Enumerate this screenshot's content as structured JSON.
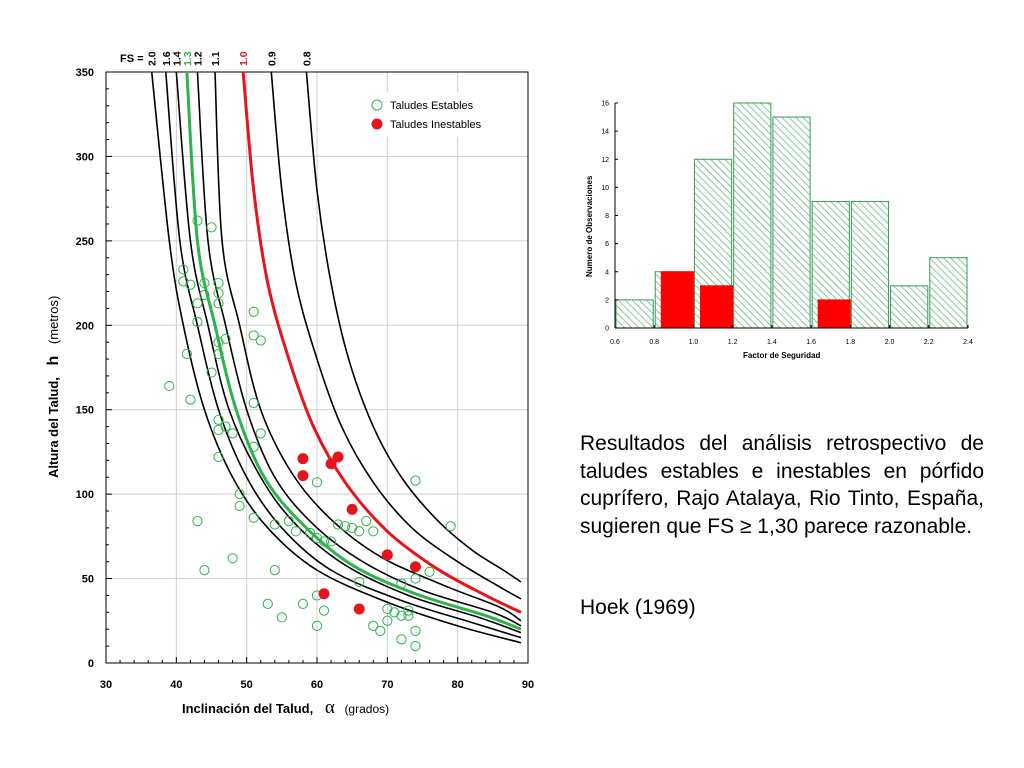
{
  "main_chart": {
    "fs_header": "FS  =",
    "curve_labels": [
      "2.0",
      "1.6",
      "1.4",
      "1.3",
      "1.2",
      "1.1",
      "1.0",
      "0.9",
      "0.8"
    ],
    "xlabel_main": "Inclinación del Talud,",
    "xlabel_symbol": "α",
    "xlabel_units": "(grados)",
    "ylabel_main": "Altura  del  Talud,",
    "ylabel_symbol": "h",
    "ylabel_units": "(metros)",
    "legend": {
      "stable": "Taludes  Estables",
      "unstable": "Taludes Inestables"
    },
    "colors": {
      "stable": "#2db34a",
      "unstable": "#e8141c",
      "line": "#000000"
    }
  },
  "histogram": {
    "ylabel": "Numero  de  Observaciones",
    "xlabel": "Factor  de  Seguridad",
    "colors": {
      "stable_edge": "#3a9a55",
      "stable_hatch": "#6dbb82",
      "unstable": "#ff0000"
    }
  },
  "caption": "Resultados del análisis retrospectivo de taludes estables e inestables en pórfido cuprífero, Rajo Atalaya, Rio Tinto, España, sugieren que FS ≥ 1,30 parece razonable.",
  "citation": "Hoek (1969)",
  "chart_data": [
    {
      "type": "scatter",
      "xlabel": "Inclinación del Talud, α (grados)",
      "ylabel": "Altura  del  Talud,  h  (metros)",
      "xlim": [
        30,
        90
      ],
      "ylim": [
        0,
        350
      ],
      "xticks": [
        30,
        40,
        50,
        60,
        70,
        80,
        90
      ],
      "yticks": [
        0,
        50,
        100,
        150,
        200,
        250,
        300,
        350
      ],
      "grid": true,
      "legend_position": "top-right",
      "fs_curves": [
        {
          "label": "2.0",
          "color": "#000000",
          "points": [
            [
              36.5,
              350
            ],
            [
              39,
              250
            ],
            [
              41,
              200
            ],
            [
              44,
              150
            ],
            [
              48,
              110
            ],
            [
              53,
              80
            ],
            [
              60,
              55
            ],
            [
              70,
              36
            ],
            [
              80,
              22
            ],
            [
              89,
              12
            ]
          ]
        },
        {
          "label": "1.6",
          "color": "#000000",
          "points": [
            [
              38.5,
              350
            ],
            [
              40.5,
              250
            ],
            [
              43,
              200
            ],
            [
              46,
              150
            ],
            [
              50,
              110
            ],
            [
              55,
              80
            ],
            [
              62,
              55
            ],
            [
              72,
              37
            ],
            [
              82,
              24
            ],
            [
              89,
              15
            ]
          ]
        },
        {
          "label": "1.4",
          "color": "#000000",
          "points": [
            [
              40,
              350
            ],
            [
              42,
              250
            ],
            [
              44.5,
              200
            ],
            [
              47.5,
              150
            ],
            [
              52,
              110
            ],
            [
              57,
              82
            ],
            [
              64,
              58
            ],
            [
              73,
              40
            ],
            [
              83,
              27
            ],
            [
              89,
              18
            ]
          ]
        },
        {
          "label": "1.3",
          "color": "#2db34a",
          "points": [
            [
              41.5,
              350
            ],
            [
              43,
              250
            ],
            [
              45.5,
              200
            ],
            [
              48.5,
              150
            ],
            [
              52.5,
              110
            ],
            [
              58,
              82
            ],
            [
              65,
              58
            ],
            [
              74,
              41
            ],
            [
              84,
              28
            ],
            [
              89,
              20
            ]
          ]
        },
        {
          "label": "1.2",
          "color": "#000000",
          "points": [
            [
              43,
              350
            ],
            [
              44.5,
              250
            ],
            [
              47,
              200
            ],
            [
              50,
              150
            ],
            [
              54,
              110
            ],
            [
              59.5,
              82
            ],
            [
              66.5,
              60
            ],
            [
              75,
              43
            ],
            [
              85,
              30
            ],
            [
              89,
              22
            ]
          ]
        },
        {
          "label": "1.1",
          "color": "#000000",
          "points": [
            [
              45.5,
              350
            ],
            [
              46.5,
              250
            ],
            [
              49,
              200
            ],
            [
              52,
              150
            ],
            [
              56.5,
              112
            ],
            [
              62,
              85
            ],
            [
              69,
              63
            ],
            [
              78,
              46
            ],
            [
              86,
              33
            ],
            [
              89,
              25
            ]
          ]
        },
        {
          "label": "1.0",
          "color": "#e8141c",
          "points": [
            [
              49.5,
              350
            ],
            [
              51,
              280
            ],
            [
              53,
              225
            ],
            [
              56,
              180
            ],
            [
              59.5,
              140
            ],
            [
              64,
              107
            ],
            [
              70,
              78
            ],
            [
              77,
              56
            ],
            [
              84,
              40
            ],
            [
              89,
              30
            ]
          ]
        },
        {
          "label": "0.9",
          "color": "#000000",
          "points": [
            [
              53.5,
              350
            ],
            [
              55,
              280
            ],
            [
              57,
              225
            ],
            [
              60,
              180
            ],
            [
              63.5,
              140
            ],
            [
              68,
              107
            ],
            [
              73.5,
              80
            ],
            [
              80,
              60
            ],
            [
              86,
              45
            ],
            [
              89,
              38
            ]
          ]
        },
        {
          "label": "0.8",
          "color": "#000000",
          "points": [
            [
              58.5,
              350
            ],
            [
              60,
              280
            ],
            [
              62,
              225
            ],
            [
              64.5,
              180
            ],
            [
              68,
              140
            ],
            [
              72,
              110
            ],
            [
              77,
              85
            ],
            [
              82,
              67
            ],
            [
              86.5,
              55
            ],
            [
              89,
              48
            ]
          ]
        }
      ],
      "series": [
        {
          "name": "Taludes  Estables",
          "marker": "open-circle",
          "color": "#2db34a",
          "points": [
            [
              39,
              164
            ],
            [
              41,
              233
            ],
            [
              41,
              226
            ],
            [
              42,
              224
            ],
            [
              41.5,
              183
            ],
            [
              42,
              156
            ],
            [
              43,
              262
            ],
            [
              43,
              213
            ],
            [
              43,
              202
            ],
            [
              44,
              225
            ],
            [
              44,
              218
            ],
            [
              45,
              258
            ],
            [
              45,
              172
            ],
            [
              46,
              225
            ],
            [
              46,
              219
            ],
            [
              46,
              213
            ],
            [
              46,
              190
            ],
            [
              46,
              183
            ],
            [
              46,
              144
            ],
            [
              46,
              138
            ],
            [
              46,
              122
            ],
            [
              47,
              192
            ],
            [
              47,
              140
            ],
            [
              48,
              136
            ],
            [
              49,
              100
            ],
            [
              49,
              93
            ],
            [
              51,
              208
            ],
            [
              51,
              194
            ],
            [
              51,
              154
            ],
            [
              51,
              128
            ],
            [
              51,
              86
            ],
            [
              52,
              191
            ],
            [
              52,
              136
            ],
            [
              43,
              84
            ],
            [
              44,
              55
            ],
            [
              48,
              62
            ],
            [
              53,
              35
            ],
            [
              54,
              82
            ],
            [
              54,
              55
            ],
            [
              55,
              27
            ],
            [
              56,
              84
            ],
            [
              57,
              78
            ],
            [
              58,
              35
            ],
            [
              59,
              77
            ],
            [
              60,
              107
            ],
            [
              60,
              74
            ],
            [
              60,
              40
            ],
            [
              60,
              22
            ],
            [
              61,
              72
            ],
            [
              61,
              31
            ],
            [
              62,
              72
            ],
            [
              63,
              82
            ],
            [
              64,
              81
            ],
            [
              65,
              80
            ],
            [
              66,
              78
            ],
            [
              67,
              84
            ],
            [
              68,
              78
            ],
            [
              66,
              48
            ],
            [
              68,
              22
            ],
            [
              69,
              19
            ],
            [
              70,
              32
            ],
            [
              70,
              25
            ],
            [
              71,
              30
            ],
            [
              72,
              47
            ],
            [
              72,
              28
            ],
            [
              72,
              14
            ],
            [
              73,
              28
            ],
            [
              73,
              31
            ],
            [
              74,
              108
            ],
            [
              74,
              50
            ],
            [
              74,
              19
            ],
            [
              74,
              10
            ],
            [
              76,
              54
            ],
            [
              79,
              81
            ]
          ]
        },
        {
          "name": "Taludes Inestables",
          "marker": "filled-circle",
          "color": "#e8141c",
          "points": [
            [
              58,
              121
            ],
            [
              58,
              111
            ],
            [
              62,
              118
            ],
            [
              63,
              122
            ],
            [
              65,
              91
            ],
            [
              70,
              64
            ],
            [
              74,
              57
            ],
            [
              61,
              41
            ],
            [
              66,
              32
            ]
          ]
        }
      ]
    },
    {
      "type": "bar",
      "xlabel": "Factor  de  Seguridad",
      "ylabel": "Numero  de  Observaciones",
      "xlim": [
        0.6,
        2.4
      ],
      "ylim": [
        0,
        16
      ],
      "xticks": [
        0.6,
        0.8,
        1.0,
        1.2,
        1.4,
        1.6,
        1.8,
        2.0,
        2.2,
        2.4
      ],
      "yticks": [
        0,
        2,
        4,
        6,
        8,
        10,
        12,
        14,
        16
      ],
      "series": [
        {
          "name": "stable",
          "style": "hatched",
          "bars": [
            [
              0.6,
              0.8,
              2
            ],
            [
              0.8,
              1.0,
              4
            ],
            [
              1.0,
              1.2,
              12
            ],
            [
              1.2,
              1.4,
              16
            ],
            [
              1.4,
              1.6,
              15
            ],
            [
              1.6,
              1.8,
              9
            ],
            [
              1.8,
              2.0,
              9
            ],
            [
              2.0,
              2.2,
              3
            ],
            [
              2.2,
              2.4,
              5
            ]
          ]
        },
        {
          "name": "unstable",
          "style": "solid",
          "bars": [
            [
              0.8,
              1.0,
              4
            ],
            [
              1.0,
              1.2,
              3
            ],
            [
              1.6,
              1.8,
              2
            ]
          ]
        }
      ]
    }
  ]
}
